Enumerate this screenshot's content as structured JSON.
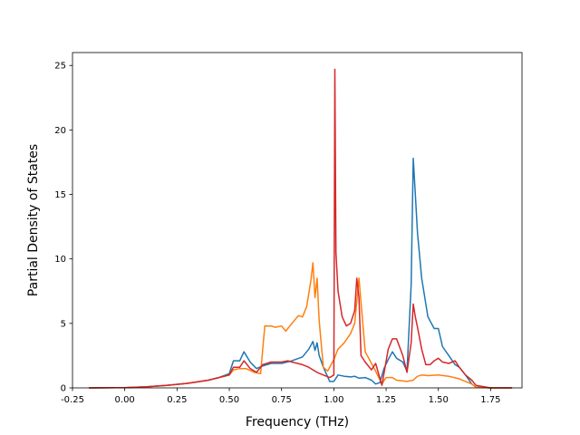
{
  "chart_data": {
    "type": "line",
    "title": "",
    "xlabel": "Frequency (THz)",
    "ylabel": "Partial Density of States",
    "xlim": [
      -0.25,
      1.9
    ],
    "ylim": [
      0,
      26
    ],
    "grid": false,
    "legend": "none",
    "xticks": [
      "-0.25",
      "0.00",
      "0.25",
      "0.50",
      "0.75",
      "1.00",
      "1.25",
      "1.50",
      "1.75"
    ],
    "yticks": [
      "0",
      "5",
      "10",
      "15",
      "20",
      "25"
    ],
    "series": [
      {
        "color": "#1f77b4",
        "x": [
          -0.17,
          0.0,
          0.1,
          0.2,
          0.3,
          0.4,
          0.45,
          0.5,
          0.52,
          0.55,
          0.57,
          0.6,
          0.63,
          0.66,
          0.7,
          0.75,
          0.8,
          0.85,
          0.88,
          0.9,
          0.91,
          0.92,
          0.93,
          0.95,
          0.98,
          1.0,
          1.02,
          1.05,
          1.08,
          1.1,
          1.12,
          1.15,
          1.18,
          1.2,
          1.22,
          1.24,
          1.26,
          1.28,
          1.3,
          1.33,
          1.35,
          1.37,
          1.38,
          1.39,
          1.4,
          1.42,
          1.45,
          1.48,
          1.5,
          1.52,
          1.55,
          1.58,
          1.6,
          1.63,
          1.66,
          1.68,
          1.75,
          1.85
        ],
        "y": [
          0.0,
          0.02,
          0.08,
          0.2,
          0.35,
          0.6,
          0.8,
          1.1,
          2.1,
          2.1,
          2.8,
          2.0,
          1.5,
          1.7,
          1.9,
          1.9,
          2.1,
          2.4,
          3.0,
          3.6,
          2.9,
          3.5,
          2.5,
          1.6,
          0.5,
          0.5,
          1.0,
          0.9,
          0.85,
          0.9,
          0.75,
          0.8,
          0.6,
          0.3,
          0.4,
          1.5,
          2.2,
          2.8,
          2.3,
          2.0,
          1.3,
          8.0,
          17.8,
          15.0,
          12.0,
          8.5,
          5.5,
          4.6,
          4.6,
          3.2,
          2.5,
          1.8,
          1.6,
          1.0,
          0.3,
          0.05,
          0.0,
          0.0
        ]
      },
      {
        "color": "#ff7f0e",
        "x": [
          -0.17,
          0.0,
          0.1,
          0.2,
          0.3,
          0.4,
          0.45,
          0.5,
          0.52,
          0.55,
          0.58,
          0.62,
          0.65,
          0.66,
          0.67,
          0.7,
          0.72,
          0.75,
          0.77,
          0.8,
          0.83,
          0.85,
          0.87,
          0.89,
          0.9,
          0.91,
          0.92,
          0.93,
          0.95,
          0.97,
          1.0,
          1.02,
          1.05,
          1.08,
          1.1,
          1.12,
          1.15,
          1.2,
          1.23,
          1.25,
          1.28,
          1.3,
          1.35,
          1.38,
          1.4,
          1.42,
          1.45,
          1.5,
          1.55,
          1.6,
          1.63,
          1.66,
          1.68,
          1.75,
          1.85
        ],
        "y": [
          0.0,
          0.02,
          0.08,
          0.2,
          0.35,
          0.6,
          0.8,
          1.0,
          1.4,
          1.5,
          1.5,
          1.2,
          1.1,
          3.0,
          4.8,
          4.8,
          4.7,
          4.8,
          4.4,
          5.0,
          5.6,
          5.5,
          6.3,
          8.3,
          9.7,
          7.0,
          8.5,
          5.2,
          1.6,
          1.3,
          2.2,
          3.0,
          3.5,
          4.2,
          5.0,
          8.5,
          2.8,
          1.3,
          0.3,
          0.8,
          0.8,
          0.6,
          0.5,
          0.6,
          0.9,
          1.0,
          0.95,
          1.0,
          0.9,
          0.7,
          0.5,
          0.3,
          0.05,
          0.0,
          0.0
        ]
      },
      {
        "color": "#d62728",
        "x": [
          -0.17,
          0.0,
          0.1,
          0.2,
          0.3,
          0.4,
          0.45,
          0.5,
          0.52,
          0.55,
          0.57,
          0.6,
          0.63,
          0.66,
          0.7,
          0.75,
          0.78,
          0.8,
          0.85,
          0.88,
          0.9,
          0.92,
          0.95,
          0.98,
          1.0,
          1.005,
          1.01,
          1.02,
          1.04,
          1.06,
          1.08,
          1.1,
          1.11,
          1.12,
          1.13,
          1.15,
          1.18,
          1.2,
          1.23,
          1.26,
          1.28,
          1.3,
          1.33,
          1.35,
          1.37,
          1.38,
          1.39,
          1.4,
          1.42,
          1.44,
          1.46,
          1.48,
          1.5,
          1.52,
          1.55,
          1.58,
          1.6,
          1.63,
          1.66,
          1.68,
          1.75,
          1.85
        ],
        "y": [
          0.0,
          0.02,
          0.08,
          0.2,
          0.35,
          0.6,
          0.8,
          1.0,
          1.6,
          1.6,
          2.1,
          1.5,
          1.2,
          1.8,
          2.0,
          2.0,
          2.1,
          2.0,
          1.8,
          1.6,
          1.4,
          1.2,
          1.0,
          0.8,
          1.0,
          24.7,
          10.5,
          7.5,
          5.5,
          4.8,
          5.0,
          6.0,
          8.5,
          7.0,
          2.5,
          2.0,
          1.4,
          1.9,
          0.2,
          3.0,
          3.8,
          3.8,
          2.5,
          1.2,
          3.5,
          6.5,
          5.5,
          4.7,
          3.0,
          1.8,
          1.8,
          2.1,
          2.3,
          2.0,
          1.9,
          2.1,
          1.6,
          1.0,
          0.6,
          0.2,
          0.0,
          0.0
        ]
      }
    ]
  }
}
